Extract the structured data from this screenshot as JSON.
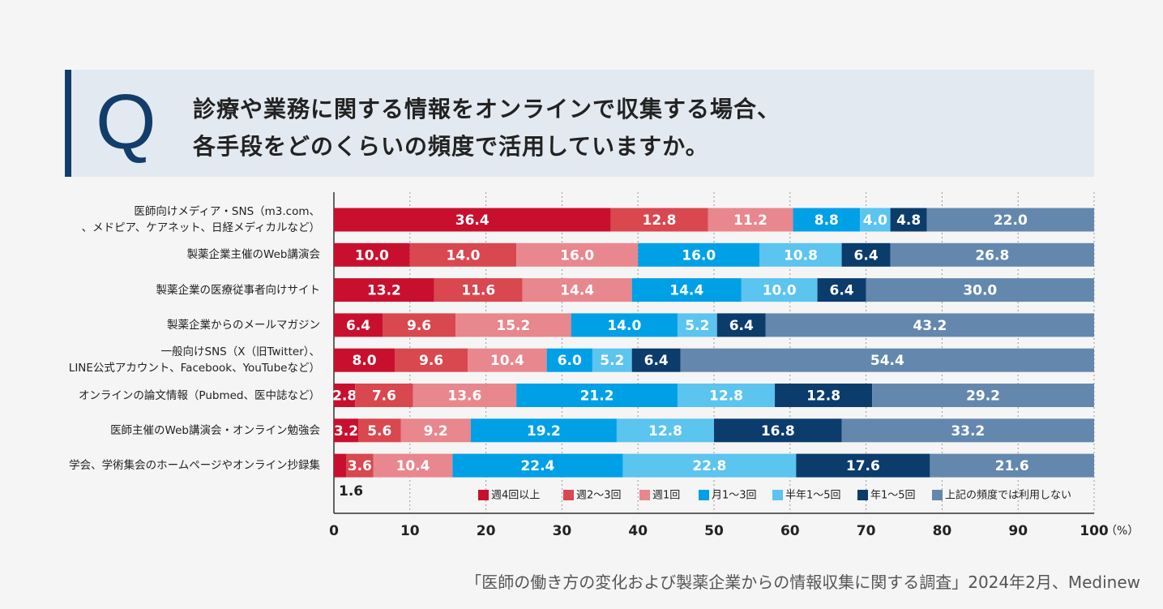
{
  "header": {
    "mark": "Q",
    "question": "診療や業務に関する情報をオンラインで収集する場合、\n各手段をどのくらいの頻度で活用していますか。"
  },
  "chart_data": {
    "type": "stacked-bar-horizontal",
    "categories": [
      "医師向けメディア・SNS（m3.com、\n、メドピア、ケアネット、日経メディカルなど）",
      "製薬企業主催のWeb講演会",
      "製薬企業の医療従事者向けサイト",
      "製薬企業からのメールマガジン",
      "一般向けSNS（X（旧Twitter）、\nLINE公式アカウント、Facebook、YouTubeなど）",
      "オンラインの論文情報（Pubmed、医中誌など）",
      "医師主催のWeb講演会・オンライン勉強会",
      "学会、学術集会のホームページやオンライン抄録集"
    ],
    "series": [
      {
        "name": "週4回以上",
        "color": "#c8102e",
        "values": [
          36.4,
          10.0,
          13.2,
          6.4,
          8.0,
          2.8,
          3.2,
          1.6
        ],
        "value_labels": [
          "36.4",
          "10.0",
          "13.2",
          "6.4",
          "8.0",
          "2.8",
          "3.2",
          "1.6"
        ]
      },
      {
        "name": "週2～3回",
        "color": "#d9474f",
        "values": [
          12.8,
          14.0,
          11.6,
          9.6,
          9.6,
          7.6,
          5.6,
          3.6
        ],
        "value_labels": [
          "12.8",
          "14.0",
          "11.6",
          "9.6",
          "9.6",
          "7.6",
          "5.6",
          "3.6"
        ]
      },
      {
        "name": "週1回",
        "color": "#e8878d",
        "values": [
          11.2,
          16.0,
          14.4,
          15.2,
          10.4,
          13.6,
          9.2,
          10.4
        ],
        "value_labels": [
          "11.2",
          "16.0",
          "14.4",
          "15.2",
          "10.4",
          "13.6",
          "9.2",
          "10.4"
        ]
      },
      {
        "name": "月1～3回",
        "color": "#00a0e6",
        "values": [
          8.8,
          16.0,
          14.4,
          14.0,
          6.0,
          21.2,
          19.2,
          22.4
        ],
        "value_labels": [
          "8.8",
          "16.0",
          "14.4",
          "14.0",
          "6.0",
          "21.2",
          "19.2",
          "22.4"
        ]
      },
      {
        "name": "半年1～5回",
        "color": "#5bc4ef",
        "values": [
          4.0,
          10.8,
          10.0,
          5.2,
          5.2,
          12.8,
          12.8,
          22.8
        ],
        "value_labels": [
          "4.0",
          "10.8",
          "10.0",
          "5.2",
          "5.2",
          "12.8",
          "12.8",
          "22.8"
        ]
      },
      {
        "name": "年1～5回",
        "color": "#0b3c6c",
        "values": [
          4.8,
          6.4,
          6.4,
          6.4,
          6.4,
          12.8,
          16.8,
          17.6
        ],
        "value_labels": [
          "4.8",
          "6.4",
          "6.4",
          "6.4",
          "6.4",
          "12.8",
          "16.8",
          "17.6"
        ]
      },
      {
        "name": "上記の頻度では利用しない",
        "color": "#6488ad",
        "values": [
          22.0,
          26.8,
          30.0,
          43.2,
          54.4,
          29.2,
          33.2,
          21.6
        ],
        "value_labels": [
          "22.0",
          "26.8",
          "30.0",
          "43.2",
          "54.4",
          "29.2",
          "33.2",
          "21.6"
        ]
      }
    ],
    "xlim": [
      0,
      100
    ],
    "xticks": [
      0,
      10,
      20,
      30,
      40,
      50,
      60,
      70,
      80,
      90,
      100
    ],
    "x_unit": "（%）",
    "grid": true,
    "source": "「医師の働き方の変化および製薬企業からの情報収集に関する調査」2024年2月、Medinew"
  }
}
